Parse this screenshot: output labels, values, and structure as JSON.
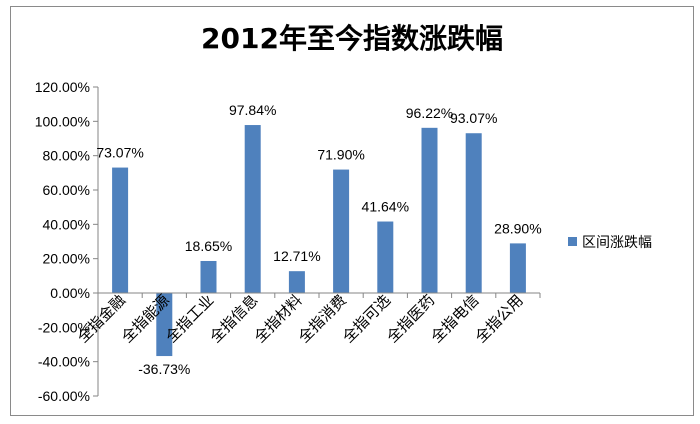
{
  "chart_data": {
    "type": "bar",
    "title": "2012年至今指数涨跌幅",
    "categories": [
      "全指金融",
      "全指能源",
      "全指工业",
      "全指信息",
      "全指材料",
      "全指消费",
      "全指可选",
      "全指医药",
      "全指电信",
      "全指公用"
    ],
    "series": [
      {
        "name": "区间涨跌幅",
        "values": [
          73.07,
          -36.73,
          18.65,
          97.84,
          12.71,
          71.9,
          41.64,
          96.22,
          93.07,
          28.9
        ],
        "labels": [
          "73.07%",
          "-36.73%",
          "18.65%",
          "97.84%",
          "12.71%",
          "71.90%",
          "41.64%",
          "96.22%",
          "93.07%",
          "28.90%"
        ]
      }
    ],
    "yticks": [
      "120.00%",
      "100.00%",
      "80.00%",
      "60.00%",
      "40.00%",
      "20.00%",
      "0.00%",
      "-20.00%",
      "-40.00%",
      "-60.00%"
    ],
    "ylim": [
      -60,
      120
    ],
    "xlabel": "",
    "ylabel": "",
    "grid": false,
    "legend_position": "right",
    "colors": {
      "bar": "#4f81bd",
      "axis": "#868686"
    }
  }
}
